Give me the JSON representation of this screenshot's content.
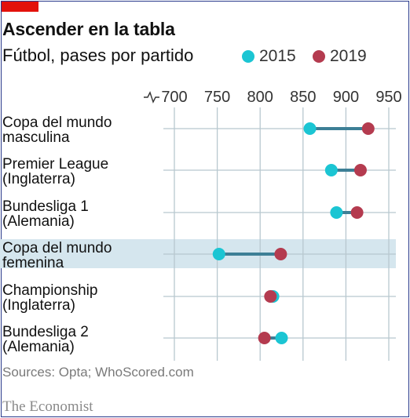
{
  "header": {
    "title": "Ascender en la tabla",
    "subtitle": "Fútbol, pases por partido"
  },
  "legend": [
    {
      "name": "2015",
      "color": "#1bc5d3"
    },
    {
      "name": "2019",
      "color": "#b43b4f"
    }
  ],
  "chart_data": {
    "type": "dot-range",
    "title": "Ascender en la tabla",
    "subtitle": "Fútbol, pases por partido",
    "x_ticks": [
      700,
      750,
      800,
      850,
      900,
      950
    ],
    "xlim": [
      700,
      950
    ],
    "axis_break": true,
    "grid": true,
    "legend_placement": "top-right",
    "highlight_category": "Copa del mundo femenina",
    "categories": [
      {
        "label_lines": [
          "Copa del mundo",
          "masculina"
        ],
        "v2015": 858,
        "v2019": 926
      },
      {
        "label_lines": [
          "Premier League",
          "(Inglaterra)"
        ],
        "v2015": 883,
        "v2019": 917
      },
      {
        "label_lines": [
          "Bundesliga 1",
          "(Alemania)"
        ],
        "v2015": 889,
        "v2019": 913
      },
      {
        "label_lines": [
          "Copa del mundo",
          "femenina"
        ],
        "v2015": 752,
        "v2019": 824
      },
      {
        "label_lines": [
          "Championship",
          "(Inglaterra)"
        ],
        "v2015": 815,
        "v2019": 812
      },
      {
        "label_lines": [
          "Bundesliga 2",
          "(Alemania)"
        ],
        "v2015": 825,
        "v2019": 805
      }
    ],
    "series": [
      {
        "name": "2015",
        "color": "#1bc5d3"
      },
      {
        "name": "2019",
        "color": "#b43b4f"
      }
    ],
    "connector_color": "#3d7f96",
    "grid_color": "#b8c8cf",
    "highlight_color": "#d5e6ee"
  },
  "footer": {
    "source": "Sources: Opta; WhoScored.com",
    "brand": "The Economist"
  }
}
